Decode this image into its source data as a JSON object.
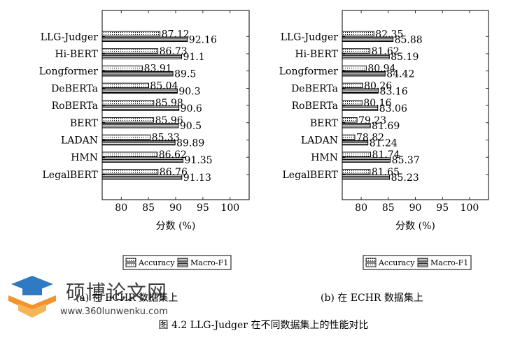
{
  "chart_data": [
    {
      "type": "bar",
      "orientation": "horizontal",
      "categories": [
        "LLG-Judger",
        "Hi-BERT",
        "Longformer",
        "DeBERTa",
        "RoBERTa",
        "BERT",
        "LADAN",
        "HMN",
        "LegalBERT"
      ],
      "series": [
        {
          "name": "Accuracy",
          "values": [
            87.12,
            86.73,
            83.91,
            85.04,
            85.98,
            85.96,
            85.33,
            86.62,
            86.76
          ]
        },
        {
          "name": "Macro-F1",
          "values": [
            92.16,
            91.1,
            89.5,
            90.3,
            90.6,
            90.5,
            89.89,
            91.35,
            91.13
          ]
        }
      ],
      "xlabel": "分数 (%)",
      "xticks": [
        80,
        85,
        90,
        95,
        100
      ],
      "xlim": [
        76.5,
        103.5
      ],
      "legend": [
        "Accuracy",
        "Macro-F1"
      ],
      "legend_position": "bottom",
      "caption": "(a) 在 ECHR 数据集上"
    },
    {
      "type": "bar",
      "orientation": "horizontal",
      "categories": [
        "LLG-Judger",
        "Hi-BERT",
        "Longformer",
        "DeBERTa",
        "RoBERTa",
        "BERT",
        "LADAN",
        "HMN",
        "LegalBERT"
      ],
      "series": [
        {
          "name": "Accuracy",
          "values": [
            82.35,
            81.62,
            80.94,
            80.26,
            80.16,
            79.23,
            78.82,
            81.74,
            81.65
          ]
        },
        {
          "name": "Macro-F1",
          "values": [
            85.88,
            85.19,
            84.42,
            83.16,
            83.06,
            81.69,
            81.24,
            85.37,
            85.23
          ]
        }
      ],
      "xlabel": "分数 (%)",
      "xticks": [
        80,
        85,
        90,
        95,
        100
      ],
      "xlim": [
        76.5,
        103.5
      ],
      "legend": [
        "Accuracy",
        "Macro-F1"
      ],
      "legend_position": "bottom",
      "caption": "(b) 在 ECHR 数据集上"
    }
  ],
  "figure_caption": "图 4.2 LLG-Judger 在不同数据集上的性能对比",
  "watermark": {
    "title": "硕博论文网",
    "url": "www.360lunwenku.com"
  }
}
